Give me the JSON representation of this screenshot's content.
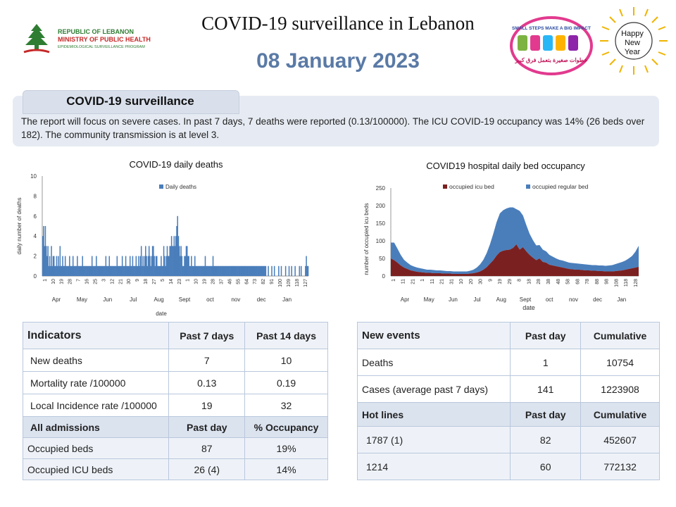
{
  "header": {
    "ministry": {
      "line1": "REPUBLIC OF LEBANON",
      "line2": "MINISTRY OF PUBLIC HEALTH",
      "line3": "EPIDEMIOLOGICAL SURVEILLANCE PROGRAM"
    },
    "title": "COVID-19 surveillance in Lebanon",
    "date": "08 January 2023",
    "campaign": {
      "top": "SMALL STEPS MAKE A BIG IMPACT",
      "bottom": "خطوات صغيرة بتعمل فرق كبير"
    },
    "new_year": {
      "line1": "Happy",
      "line2": "New",
      "line3": "Year"
    }
  },
  "surveillance": {
    "heading": "COVID-19 surveillance",
    "text": "The report will focus on severe cases. In past 7 days, 7 deaths were reported (0.13/100000). The ICU COVID-19 occupancy was 14% (26 beds over 182). The community transmission is at level 3."
  },
  "chart_data": [
    {
      "type": "bar",
      "title": "COVID-19 daily deaths",
      "xlabel": "date",
      "ylabel": "daily number of deaths",
      "ylim": [
        0,
        10
      ],
      "yticks": [
        "0",
        "2",
        "4",
        "6",
        "8",
        "10"
      ],
      "legend": [
        "Daily deaths"
      ],
      "legend_position": "top-right",
      "day_ticks": [
        "1",
        "10",
        "19",
        "28",
        "7",
        "16",
        "25",
        "3",
        "12",
        "21",
        "30",
        "9",
        "18",
        "27",
        "5",
        "14",
        "23",
        "1",
        "10",
        "19",
        "28",
        "37",
        "46",
        "55",
        "64",
        "73",
        "82",
        "91",
        "100",
        "109",
        "118",
        "127"
      ],
      "months": [
        "Apr",
        "May",
        "Jun",
        "Jul",
        "Aug",
        "Sept",
        "oct",
        "nov",
        "dec",
        "Jan"
      ],
      "series": [
        {
          "name": "Daily deaths",
          "color": "#4a7ebb",
          "values": [
            4,
            5,
            3,
            5,
            3,
            2,
            3,
            1,
            2,
            1,
            3,
            1,
            2,
            2,
            1,
            1,
            2,
            1,
            2,
            1,
            3,
            1,
            1,
            2,
            1,
            1,
            2,
            1,
            1,
            1,
            1,
            2,
            1,
            1,
            1,
            2,
            1,
            1,
            1,
            1,
            2,
            1,
            1,
            1,
            1,
            1,
            2,
            1,
            1,
            1,
            1,
            1,
            1,
            1,
            1,
            1,
            1,
            2,
            1,
            1,
            1,
            1,
            2,
            1,
            1,
            1,
            1,
            1,
            1,
            1,
            1,
            1,
            1,
            2,
            1,
            1,
            1,
            2,
            1,
            1,
            1,
            1,
            1,
            1,
            1,
            1,
            2,
            1,
            1,
            1,
            1,
            1,
            2,
            1,
            1,
            1,
            2,
            1,
            1,
            1,
            1,
            2,
            1,
            1,
            2,
            1,
            1,
            1,
            2,
            1,
            1,
            2,
            1,
            2,
            3,
            1,
            2,
            1,
            2,
            3,
            2,
            1,
            2,
            3,
            2,
            1,
            2,
            3,
            3,
            2,
            1,
            2,
            2,
            1,
            1,
            1,
            1,
            2,
            1,
            1,
            3,
            2,
            1,
            2,
            3,
            2,
            2,
            3,
            3,
            4,
            3,
            3,
            4,
            3,
            4,
            5,
            6,
            4,
            3,
            2,
            3,
            2,
            1,
            1,
            2,
            2,
            3,
            3,
            2,
            2,
            1,
            1,
            2,
            1,
            1,
            1,
            2,
            1,
            1,
            1,
            1,
            1,
            1,
            1,
            1,
            1,
            1,
            1,
            2,
            1,
            1,
            1,
            1,
            1,
            1,
            1,
            1,
            2,
            1,
            1,
            1,
            1,
            1,
            1,
            1,
            1,
            1,
            1,
            1,
            1,
            1,
            1,
            1,
            1,
            1,
            1,
            1,
            1,
            1,
            1,
            1,
            1,
            1,
            1,
            1,
            1,
            1,
            1,
            1,
            1,
            1,
            1,
            1,
            1,
            1,
            1,
            1,
            1,
            1,
            1,
            1,
            1,
            1,
            1,
            1,
            1,
            1,
            1,
            1,
            1,
            1,
            1,
            1,
            1,
            1,
            1,
            1,
            1,
            1,
            0,
            0,
            1,
            0,
            0,
            0,
            1,
            0,
            0,
            1,
            0,
            0,
            0,
            0,
            1,
            0,
            0,
            1,
            0,
            0,
            0,
            0,
            1,
            0,
            0,
            0,
            1,
            0,
            0,
            1,
            0,
            0,
            0,
            1,
            0,
            0,
            0,
            0,
            1,
            0,
            1,
            0,
            0,
            0,
            0,
            1,
            2,
            1,
            1
          ]
        }
      ]
    },
    {
      "type": "area",
      "title": "COVID19 hospital daily bed occupancy",
      "xlabel": "date",
      "ylabel": "number of occupied icu beds",
      "ylim": [
        0,
        250
      ],
      "yticks": [
        "0",
        "50",
        "100",
        "150",
        "200",
        "250"
      ],
      "legend_position": "top",
      "day_ticks": [
        "1",
        "11",
        "21",
        "1",
        "11",
        "21",
        "31",
        "10",
        "20",
        "30",
        "9",
        "19",
        "29",
        "8",
        "18",
        "28",
        "38",
        "48",
        "58",
        "68",
        "78",
        "88",
        "98",
        "108",
        "118",
        "128"
      ],
      "months": [
        "Apr",
        "May",
        "Jun",
        "Jul",
        "Aug",
        "Sept",
        "oct",
        "nov",
        "dec",
        "Jan"
      ],
      "series": [
        {
          "name": "occupied icu bed",
          "color": "#7b2020",
          "values": [
            50,
            45,
            38,
            30,
            24,
            20,
            16,
            14,
            12,
            11,
            10,
            9,
            9,
            8,
            8,
            8,
            7,
            7,
            7,
            6,
            6,
            6,
            6,
            6,
            7,
            8,
            10,
            13,
            18,
            25,
            35,
            45,
            58,
            68,
            72,
            74,
            75,
            80,
            90,
            75,
            82,
            70,
            60,
            52,
            45,
            50,
            40,
            38,
            32,
            30,
            28,
            26,
            24,
            22,
            20,
            19,
            18,
            18,
            17,
            16,
            16,
            15,
            15,
            14,
            14,
            13,
            13,
            13,
            14,
            15,
            16,
            18,
            20,
            22,
            24,
            26
          ]
        },
        {
          "name": "occupied regular bed",
          "color": "#4a7ebb",
          "values": [
            45,
            50,
            40,
            30,
            22,
            18,
            15,
            13,
            12,
            11,
            10,
            9,
            9,
            9,
            8,
            8,
            8,
            7,
            7,
            7,
            7,
            7,
            7,
            7,
            8,
            10,
            14,
            20,
            28,
            40,
            55,
            75,
            95,
            110,
            115,
            118,
            120,
            115,
            100,
            110,
            90,
            75,
            60,
            50,
            42,
            38,
            35,
            32,
            28,
            25,
            22,
            20,
            20,
            19,
            18,
            18,
            18,
            17,
            17,
            17,
            16,
            16,
            16,
            16,
            16,
            16,
            17,
            18,
            20,
            22,
            24,
            26,
            30,
            35,
            45,
            60
          ]
        }
      ]
    }
  ],
  "indicators_table": {
    "headers": [
      "Indicators",
      "Past 7 days",
      "Past 14 days"
    ],
    "rows": [
      [
        "New deaths",
        "7",
        "10"
      ],
      [
        "Mortality rate /100000",
        "0.13",
        "0.19"
      ],
      [
        "Local Incidence rate /100000",
        "19",
        "32"
      ]
    ],
    "admissions_header": [
      "All admissions",
      "Past day",
      "% Occupancy"
    ],
    "admission_rows": [
      [
        "Occupied beds",
        "87",
        "19%"
      ],
      [
        "Occupied ICU beds",
        "26 (4)",
        "14%"
      ]
    ]
  },
  "events_table": {
    "headers": [
      "New events",
      "Past day",
      "Cumulative"
    ],
    "rows": [
      [
        "Deaths",
        "1",
        "10754"
      ],
      [
        "Cases (average past 7 days)",
        "141",
        "1223908"
      ]
    ],
    "hotlines_header": [
      "Hot lines",
      "Past day",
      "Cumulative"
    ],
    "hotline_rows": [
      [
        "1787 (1)",
        "82",
        "452607"
      ],
      [
        "1214",
        "60",
        "772132"
      ]
    ]
  }
}
